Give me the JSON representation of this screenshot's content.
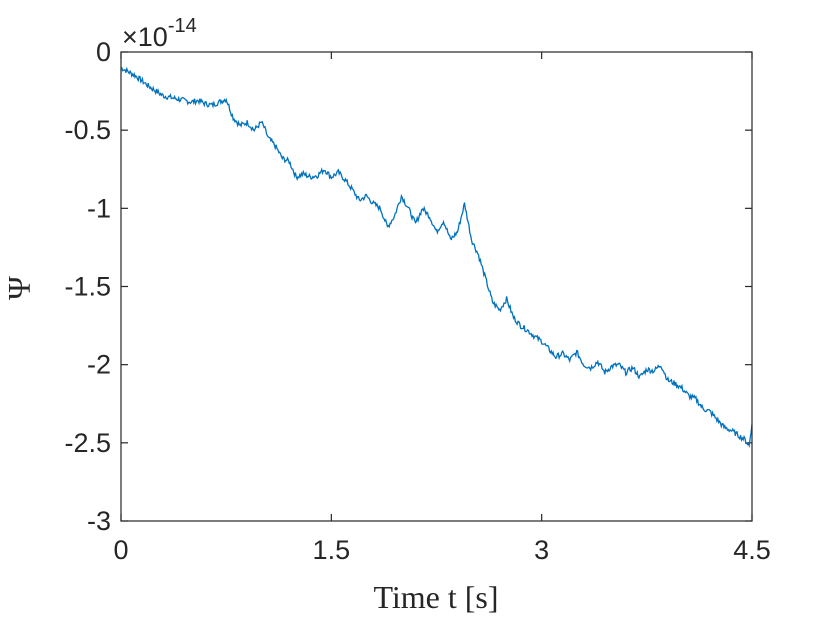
{
  "chart_data": {
    "type": "line",
    "title": "",
    "xlabel": "Time t [s]",
    "ylabel": "Ψ",
    "y_exponent_prefix": "×10",
    "y_exponent_power": "-14",
    "xlim": [
      0,
      4.5
    ],
    "ylim": [
      -3,
      0
    ],
    "x_ticks": [
      0,
      1.5,
      3,
      4.5
    ],
    "x_tick_labels": [
      "0",
      "1.5",
      "3",
      "4.5"
    ],
    "y_ticks": [
      0,
      -0.5,
      -1,
      -1.5,
      -2,
      -2.5,
      -3
    ],
    "y_tick_labels": [
      "0",
      "-0.5",
      "-1",
      "-1.5",
      "-2",
      "-2.5",
      "-3"
    ],
    "grid": false,
    "line_color": "#0072BD",
    "series": [
      {
        "x": [
          0,
          0.1,
          0.2,
          0.3,
          0.4,
          0.5,
          0.55,
          0.6,
          0.65,
          0.7,
          0.75,
          0.8,
          0.85,
          0.9,
          0.95,
          1.0,
          1.02,
          1.05,
          1.1,
          1.15,
          1.2,
          1.25,
          1.3,
          1.35,
          1.4,
          1.45,
          1.5,
          1.55,
          1.6,
          1.65,
          1.7,
          1.75,
          1.8,
          1.85,
          1.9,
          1.95,
          2.0,
          2.05,
          2.1,
          2.15,
          2.2,
          2.25,
          2.3,
          2.35,
          2.4,
          2.45,
          2.5,
          2.55,
          2.6,
          2.65,
          2.7,
          2.75,
          2.8,
          2.85,
          2.9,
          2.95,
          3.0,
          3.05,
          3.1,
          3.15,
          3.2,
          3.25,
          3.3,
          3.35,
          3.4,
          3.45,
          3.5,
          3.55,
          3.6,
          3.65,
          3.7,
          3.75,
          3.8,
          3.85,
          3.9,
          3.95,
          4.0,
          4.05,
          4.1,
          4.15,
          4.2,
          4.25,
          4.3,
          4.35,
          4.4,
          4.45,
          4.48,
          4.5
        ],
        "y": [
          -0.1,
          -0.15,
          -0.22,
          -0.28,
          -0.3,
          -0.32,
          -0.31,
          -0.33,
          -0.34,
          -0.32,
          -0.3,
          -0.42,
          -0.47,
          -0.45,
          -0.5,
          -0.45,
          -0.48,
          -0.55,
          -0.6,
          -0.68,
          -0.7,
          -0.8,
          -0.78,
          -0.8,
          -0.79,
          -0.75,
          -0.8,
          -0.77,
          -0.82,
          -0.88,
          -0.95,
          -0.92,
          -0.97,
          -1.0,
          -1.12,
          -1.05,
          -0.92,
          -1.0,
          -1.1,
          -1.0,
          -1.05,
          -1.15,
          -1.08,
          -1.2,
          -1.15,
          -0.97,
          -1.2,
          -1.3,
          -1.45,
          -1.6,
          -1.65,
          -1.58,
          -1.7,
          -1.75,
          -1.78,
          -1.82,
          -1.85,
          -1.9,
          -1.95,
          -1.93,
          -1.97,
          -1.92,
          -2.0,
          -2.02,
          -1.98,
          -2.05,
          -2.01,
          -2.0,
          -2.05,
          -2.02,
          -2.08,
          -2.03,
          -2.04,
          -2.0,
          -2.1,
          -2.12,
          -2.15,
          -2.2,
          -2.22,
          -2.28,
          -2.3,
          -2.35,
          -2.4,
          -2.42,
          -2.45,
          -2.48,
          -2.52,
          -2.38
        ]
      }
    ]
  }
}
